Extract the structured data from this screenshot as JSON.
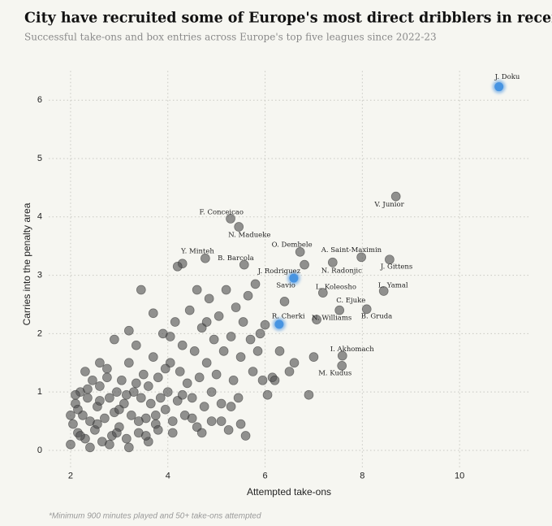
{
  "chart_data": {
    "type": "scatter",
    "title": "City have recruited some of Europe's most direct dribblers in recent years",
    "subtitle": "Successful take-ons and box entries across Europe's top five leagues since 2022-23",
    "x_label": "Attempted take-ons",
    "y_label": "Carries into the penalty area",
    "note": "*Minimum 900 minutes played and 50+ take-ons attempted",
    "xlim": [
      1.55,
      11.45
    ],
    "ylim": [
      -0.3,
      6.5
    ],
    "xticks": [
      2,
      4,
      6,
      8,
      10
    ],
    "yticks": [
      0,
      1,
      2,
      3,
      4,
      5,
      6
    ],
    "grid": true,
    "series": [
      {
        "color": "#4d4d4d",
        "labels": [
          "V. Junior",
          "F. Conceicao",
          "N. Madueke",
          "Y. Minteh",
          "B. Barcola",
          "O. Dembele",
          "A. Saint-Maximin",
          "J. Gittens",
          "N. Radonjic",
          "J. Rodriguez",
          "L. Koleosho",
          "L. Yamal",
          "C. Ejuke",
          "B. Gruda",
          "N. Williams",
          "I. Akhomach",
          "M. Kudus"
        ],
        "x": [
          8.69,
          5.29,
          5.46,
          4.77,
          5.57,
          6.72,
          7.98,
          8.56,
          7.39,
          6.81,
          7.19,
          8.44,
          7.53,
          8.09,
          7.06,
          7.59,
          7.58
        ],
        "values": [
          4.35,
          3.97,
          3.83,
          3.29,
          3.18,
          3.4,
          3.31,
          3.27,
          3.22,
          3.18,
          2.7,
          2.73,
          2.4,
          2.42,
          2.24,
          1.62,
          1.45
        ]
      },
      {
        "color": "#3f8fe0",
        "labels": [
          "J. Doku",
          "Savio",
          "R. Cherki"
        ],
        "x": [
          10.81,
          6.59,
          6.29
        ],
        "values": [
          6.23,
          2.95,
          2.16
        ]
      },
      {
        "color": "#4d4d4d",
        "x": [
          2.0,
          2.05,
          2.1,
          2.15,
          2.2,
          2.25,
          2.3,
          2.35,
          2.4,
          2.45,
          2.5,
          2.55,
          2.6,
          2.65,
          2.7,
          2.75,
          2.8,
          2.85,
          2.9,
          2.95,
          3.0,
          3.05,
          3.1,
          3.15,
          3.2,
          3.25,
          3.3,
          3.35,
          3.4,
          3.45,
          3.5,
          3.55,
          3.6,
          3.65,
          3.7,
          3.75,
          3.8,
          3.85,
          3.9,
          3.95,
          4.0,
          4.05,
          4.1,
          4.15,
          4.2,
          4.25,
          4.3,
          4.35,
          4.4,
          4.45,
          4.5,
          4.55,
          4.6,
          4.65,
          4.7,
          4.75,
          4.8,
          4.85,
          4.9,
          4.95,
          5.0,
          5.05,
          5.1,
          5.15,
          5.2,
          5.25,
          5.3,
          5.35,
          5.4,
          5.45,
          5.5,
          5.55,
          5.6,
          5.65,
          5.7,
          5.75,
          5.8,
          5.85,
          5.9,
          5.95,
          2.1,
          2.3,
          2.6,
          2.9,
          3.2,
          3.45,
          3.7,
          4.05,
          4.3,
          4.6,
          6.0,
          6.05,
          6.15,
          6.3,
          6.5,
          6.6,
          6.9,
          7.0,
          6.2,
          6.4,
          2.0,
          2.2,
          2.4,
          2.6,
          2.8,
          3.0,
          3.2,
          3.4,
          3.6,
          3.8,
          2.15,
          2.35,
          2.55,
          2.75,
          2.95,
          3.15,
          3.35,
          3.55,
          3.75,
          3.95,
          4.1,
          4.3,
          4.5,
          4.7,
          4.9,
          5.1,
          5.3,
          5.5,
          4.2,
          4.8
        ],
        "values": [
          0.1,
          0.45,
          0.8,
          0.3,
          1.0,
          0.6,
          0.2,
          0.9,
          0.5,
          1.2,
          0.35,
          0.75,
          1.1,
          0.15,
          0.55,
          1.4,
          0.9,
          0.25,
          0.65,
          1.0,
          0.4,
          1.2,
          0.8,
          0.2,
          1.5,
          0.6,
          1.0,
          1.8,
          0.3,
          0.9,
          1.3,
          0.55,
          1.1,
          0.8,
          1.6,
          0.45,
          1.25,
          0.9,
          2.0,
          0.7,
          1.0,
          1.5,
          0.5,
          2.2,
          0.85,
          1.35,
          1.8,
          0.6,
          1.15,
          2.4,
          0.9,
          1.7,
          0.4,
          1.25,
          2.1,
          0.75,
          1.5,
          2.6,
          1.0,
          1.9,
          1.3,
          2.3,
          0.8,
          1.7,
          2.75,
          0.35,
          1.95,
          1.2,
          2.45,
          0.9,
          1.6,
          2.2,
          0.25,
          2.65,
          1.9,
          1.35,
          2.85,
          1.7,
          2.0,
          1.2,
          0.95,
          1.35,
          1.5,
          1.9,
          2.05,
          2.75,
          2.35,
          1.95,
          3.2,
          2.75,
          2.15,
          0.95,
          1.25,
          1.7,
          1.35,
          1.5,
          0.95,
          1.6,
          1.2,
          2.55,
          0.6,
          0.25,
          0.05,
          0.85,
          0.1,
          0.7,
          0.05,
          0.5,
          0.15,
          0.35,
          0.7,
          1.05,
          0.45,
          1.25,
          0.3,
          0.95,
          1.15,
          0.25,
          0.6,
          1.4,
          0.3,
          0.95,
          0.55,
          0.3,
          0.5,
          0.5,
          0.75,
          0.45,
          3.15,
          2.2
        ]
      }
    ]
  }
}
